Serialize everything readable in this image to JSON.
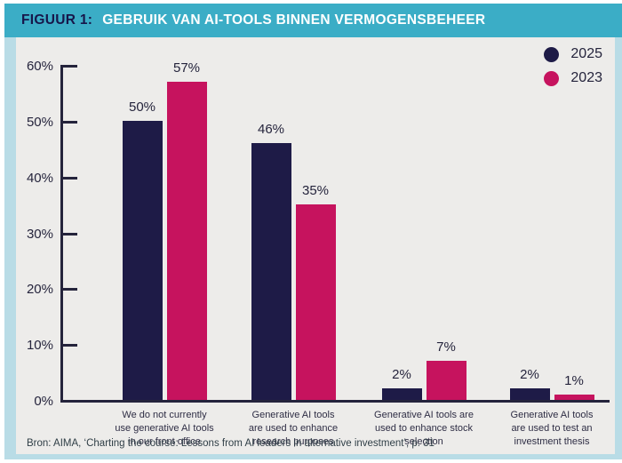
{
  "header": {
    "figure_label": "FIGUUR 1:",
    "title": "GEBRUIK VAN AI-TOOLS BINNEN VERMOGENSBEHEER"
  },
  "source": "Bron: AIMA, ‘Charting the course: Lessons from AI leaders in alternative investment’, p. 31",
  "colors": {
    "ribbon_teal": "#3badc6",
    "frame_light_teal": "#b9dce6",
    "card_background": "#edecea",
    "axis": "#25243c",
    "series_2025": "#1e1b47",
    "series_2023": "#c6135e"
  },
  "chart_data": {
    "type": "bar",
    "title": "GEBRUIK VAN AI-TOOLS BINNEN VERMOGENSBEHEER",
    "categories": [
      "We do not currently\nuse generative AI tools\nin our front office",
      "Generative AI tools\nare used to enhance\nresearch purposes",
      "Generative AI tools are\nused to enhance stock\nselection",
      "Generative AI tools\nare used to test an\ninvestment thesis"
    ],
    "series": [
      {
        "name": "2025",
        "color": "#1e1b47",
        "values": [
          50,
          46,
          2,
          2
        ]
      },
      {
        "name": "2023",
        "color": "#c6135e",
        "values": [
          57,
          35,
          7,
          1
        ]
      }
    ],
    "value_suffix": "%",
    "y_ticks": [
      0,
      10,
      20,
      30,
      40,
      50,
      60
    ],
    "ylim": [
      0,
      60
    ],
    "xlabel": "",
    "ylabel": "",
    "grid": false,
    "legend_position": "top-right"
  }
}
